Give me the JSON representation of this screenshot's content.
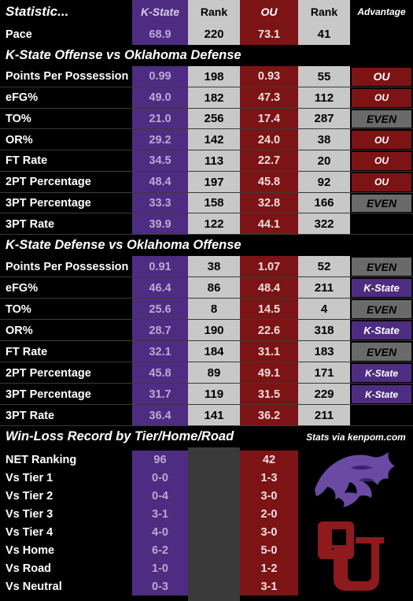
{
  "header": {
    "statistic": "Statistic...",
    "kstate": "K-State",
    "rank1": "Rank",
    "ou": "OU",
    "rank2": "Rank",
    "advantage": "Advantage"
  },
  "pace": {
    "label": "Pace",
    "ks": "68.9",
    "ks_rank": "220",
    "ou": "73.1",
    "ou_rank": "41"
  },
  "section1_title": "K-State Offense vs Oklahoma Defense",
  "offense_rows": [
    {
      "label": "Points Per Possession",
      "ks": "0.99",
      "ks_rank": "198",
      "ou": "0.93",
      "ou_rank": "55",
      "adv": "OU"
    },
    {
      "label": "eFG%",
      "ks": "49.0",
      "ks_rank": "182",
      "ou": "47.3",
      "ou_rank": "112",
      "adv": "OU"
    },
    {
      "label": "TO%",
      "ks": "21.0",
      "ks_rank": "256",
      "ou": "17.4",
      "ou_rank": "287",
      "adv": "EVEN"
    },
    {
      "label": "OR%",
      "ks": "29.2",
      "ks_rank": "142",
      "ou": "24.0",
      "ou_rank": "38",
      "adv": "OU"
    },
    {
      "label": "FT Rate",
      "ks": "34.5",
      "ks_rank": "113",
      "ou": "22.7",
      "ou_rank": "20",
      "adv": "OU"
    },
    {
      "label": "2PT Percentage",
      "ks": "48.4",
      "ks_rank": "197",
      "ou": "45.8",
      "ou_rank": "92",
      "adv": "OU"
    },
    {
      "label": "3PT Percentage",
      "ks": "33.3",
      "ks_rank": "158",
      "ou": "32.8",
      "ou_rank": "166",
      "adv": "EVEN"
    },
    {
      "label": "3PT Rate",
      "ks": "39.9",
      "ks_rank": "122",
      "ou": "44.1",
      "ou_rank": "322",
      "adv": ""
    }
  ],
  "section2_title": "K-State Defense vs Oklahoma Offense",
  "defense_rows": [
    {
      "label": "Points Per Possession",
      "ks": "0.91",
      "ks_rank": "38",
      "ou": "1.07",
      "ou_rank": "52",
      "adv": "EVEN"
    },
    {
      "label": "eFG%",
      "ks": "46.4",
      "ks_rank": "86",
      "ou": "48.4",
      "ou_rank": "211",
      "adv": "K-State"
    },
    {
      "label": "TO%",
      "ks": "25.6",
      "ks_rank": "8",
      "ou": "14.5",
      "ou_rank": "4",
      "adv": "EVEN"
    },
    {
      "label": "OR%",
      "ks": "28.7",
      "ks_rank": "190",
      "ou": "22.6",
      "ou_rank": "318",
      "adv": "K-State"
    },
    {
      "label": "FT Rate",
      "ks": "32.1",
      "ks_rank": "184",
      "ou": "31.1",
      "ou_rank": "183",
      "adv": "EVEN"
    },
    {
      "label": "2PT Percentage",
      "ks": "45.8",
      "ks_rank": "89",
      "ou": "49.1",
      "ou_rank": "171",
      "adv": "K-State"
    },
    {
      "label": "3PT Percentage",
      "ks": "31.7",
      "ks_rank": "119",
      "ou": "31.5",
      "ou_rank": "229",
      "adv": "K-State"
    },
    {
      "label": "3PT Rate",
      "ks": "36.4",
      "ks_rank": "141",
      "ou": "36.2",
      "ou_rank": "211",
      "adv": ""
    }
  ],
  "section3_title": "Win-Loss Record by Tier/Home/Road",
  "credit": "Stats via kenpom.com",
  "record_rows": [
    {
      "label": "NET Ranking",
      "ks": "96",
      "ou": "42"
    },
    {
      "label": "Vs Tier 1",
      "ks": "0-0",
      "ou": "1-3"
    },
    {
      "label": "Vs Tier 2",
      "ks": "0-4",
      "ou": "3-0"
    },
    {
      "label": "Vs Tier 3",
      "ks": "3-1",
      "ou": "2-0"
    },
    {
      "label": "Vs Tier 4",
      "ks": "4-0",
      "ou": "3-0"
    },
    {
      "label": "Vs Home",
      "ks": "6-2",
      "ou": "5-0"
    },
    {
      "label": "Vs Road",
      "ks": "1-0",
      "ou": "1-2"
    },
    {
      "label": "Vs Neutral",
      "ks": "0-3",
      "ou": "3-1"
    }
  ],
  "colors": {
    "kstate": "#4e2c81",
    "ou": "#7c1416",
    "rank": "#c8c8c8",
    "even": "#6a6a6a"
  },
  "logos": [
    "kstate-wildcat-logo",
    "oklahoma-ou-logo"
  ]
}
